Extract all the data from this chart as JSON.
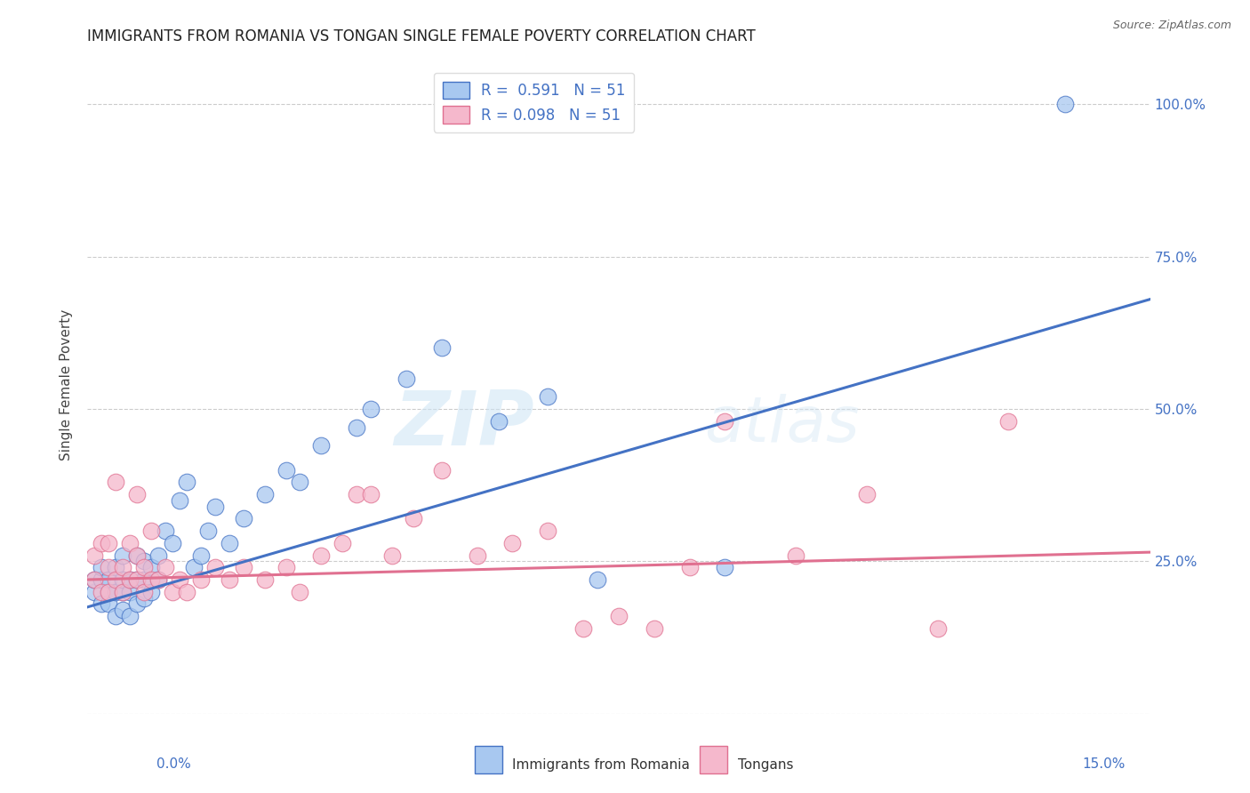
{
  "title": "IMMIGRANTS FROM ROMANIA VS TONGAN SINGLE FEMALE POVERTY CORRELATION CHART",
  "source": "Source: ZipAtlas.com",
  "ylabel": "Single Female Poverty",
  "xlim": [
    0.0,
    0.15
  ],
  "ylim": [
    0.0,
    1.08
  ],
  "yticks": [
    0.0,
    0.25,
    0.5,
    0.75,
    1.0
  ],
  "romania_R": 0.591,
  "romania_N": 51,
  "tongan_R": 0.098,
  "tongan_N": 51,
  "romania_color": "#a8c8f0",
  "tongan_color": "#f5b8cc",
  "romania_line_color": "#4472c4",
  "tongan_line_color": "#e07090",
  "watermark_zip": "ZIP",
  "watermark_atlas": "atlas",
  "legend_label_romania": "Immigrants from Romania",
  "legend_label_tongan": "Tongans",
  "romania_x": [
    0.001,
    0.001,
    0.002,
    0.002,
    0.002,
    0.003,
    0.003,
    0.003,
    0.004,
    0.004,
    0.004,
    0.005,
    0.005,
    0.005,
    0.005,
    0.006,
    0.006,
    0.006,
    0.007,
    0.007,
    0.007,
    0.008,
    0.008,
    0.008,
    0.009,
    0.009,
    0.01,
    0.01,
    0.011,
    0.012,
    0.013,
    0.014,
    0.015,
    0.016,
    0.017,
    0.018,
    0.02,
    0.022,
    0.025,
    0.028,
    0.03,
    0.033,
    0.038,
    0.04,
    0.045,
    0.05,
    0.058,
    0.065,
    0.072,
    0.09,
    0.138
  ],
  "romania_y": [
    0.2,
    0.22,
    0.18,
    0.22,
    0.24,
    0.18,
    0.2,
    0.22,
    0.16,
    0.2,
    0.24,
    0.17,
    0.2,
    0.22,
    0.26,
    0.16,
    0.2,
    0.22,
    0.18,
    0.22,
    0.26,
    0.19,
    0.22,
    0.25,
    0.2,
    0.24,
    0.22,
    0.26,
    0.3,
    0.28,
    0.35,
    0.38,
    0.24,
    0.26,
    0.3,
    0.34,
    0.28,
    0.32,
    0.36,
    0.4,
    0.38,
    0.44,
    0.47,
    0.5,
    0.55,
    0.6,
    0.48,
    0.52,
    0.22,
    0.24,
    1.0
  ],
  "tongan_x": [
    0.001,
    0.001,
    0.002,
    0.002,
    0.003,
    0.003,
    0.003,
    0.004,
    0.004,
    0.005,
    0.005,
    0.006,
    0.006,
    0.007,
    0.007,
    0.007,
    0.008,
    0.008,
    0.009,
    0.009,
    0.01,
    0.011,
    0.012,
    0.013,
    0.014,
    0.016,
    0.018,
    0.02,
    0.022,
    0.025,
    0.028,
    0.03,
    0.033,
    0.036,
    0.038,
    0.04,
    0.043,
    0.046,
    0.05,
    0.055,
    0.06,
    0.065,
    0.07,
    0.075,
    0.08,
    0.085,
    0.09,
    0.1,
    0.11,
    0.12,
    0.13
  ],
  "tongan_y": [
    0.22,
    0.26,
    0.2,
    0.28,
    0.2,
    0.24,
    0.28,
    0.22,
    0.38,
    0.2,
    0.24,
    0.22,
    0.28,
    0.22,
    0.26,
    0.36,
    0.2,
    0.24,
    0.22,
    0.3,
    0.22,
    0.24,
    0.2,
    0.22,
    0.2,
    0.22,
    0.24,
    0.22,
    0.24,
    0.22,
    0.24,
    0.2,
    0.26,
    0.28,
    0.36,
    0.36,
    0.26,
    0.32,
    0.4,
    0.26,
    0.28,
    0.3,
    0.14,
    0.16,
    0.14,
    0.24,
    0.48,
    0.26,
    0.36,
    0.14,
    0.48
  ],
  "regline_rom_x0": 0.0,
  "regline_rom_y0": 0.175,
  "regline_rom_x1": 0.15,
  "regline_rom_y1": 0.68,
  "regline_ton_x0": 0.0,
  "regline_ton_y0": 0.22,
  "regline_ton_x1": 0.15,
  "regline_ton_y1": 0.265
}
